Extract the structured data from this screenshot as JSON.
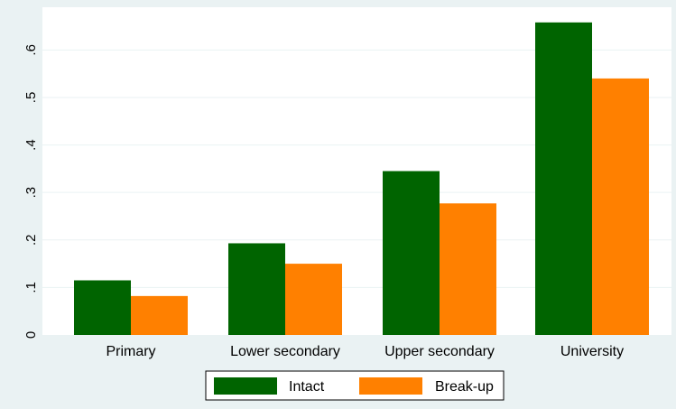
{
  "chart_data": {
    "type": "bar",
    "title": "",
    "xlabel": "",
    "ylabel": "",
    "categories": [
      "Primary",
      "Lower secondary",
      "Upper secondary",
      "University"
    ],
    "series": [
      {
        "name": "Intact",
        "values": [
          0.115,
          0.193,
          0.345,
          0.658
        ],
        "color": "#006400"
      },
      {
        "name": "Break-up",
        "values": [
          0.082,
          0.15,
          0.277,
          0.54
        ],
        "color": "#ff8000"
      }
    ],
    "yticks": [
      {
        "value": 0,
        "label": "0"
      },
      {
        "value": 0.1,
        "label": ".1"
      },
      {
        "value": 0.2,
        "label": ".2"
      },
      {
        "value": 0.3,
        "label": ".3"
      },
      {
        "value": 0.4,
        "label": ".4"
      },
      {
        "value": 0.5,
        "label": ".5"
      },
      {
        "value": 0.6,
        "label": ".6"
      }
    ],
    "ylim": [
      0,
      0.69
    ],
    "grid": true,
    "legend": "bottom",
    "plot_background": "#ffffff",
    "page_background": "#eaf2f3"
  }
}
